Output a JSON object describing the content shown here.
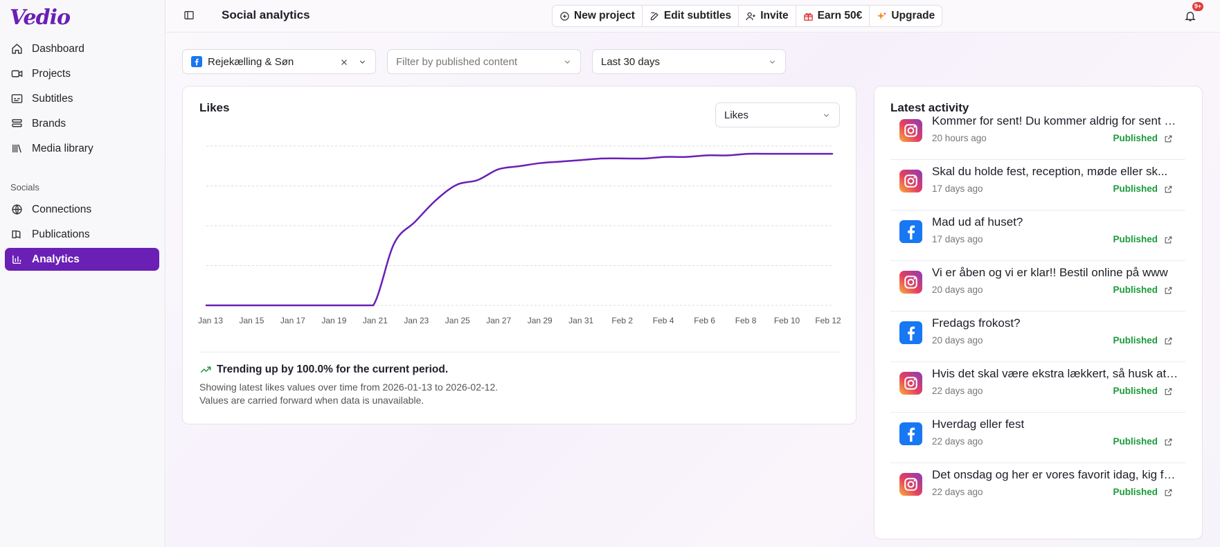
{
  "app": {
    "logo": "Vedio"
  },
  "sidebar": {
    "items": [
      {
        "label": "Dashboard",
        "icon": "home-icon"
      },
      {
        "label": "Projects",
        "icon": "video-icon"
      },
      {
        "label": "Subtitles",
        "icon": "subtitles-icon"
      },
      {
        "label": "Brands",
        "icon": "layers-icon"
      },
      {
        "label": "Media library",
        "icon": "library-icon"
      }
    ],
    "section_label": "Socials",
    "social_items": [
      {
        "label": "Connections",
        "icon": "globe-icon"
      },
      {
        "label": "Publications",
        "icon": "book-icon"
      },
      {
        "label": "Analytics",
        "icon": "bar-chart-icon",
        "active": true
      }
    ]
  },
  "header": {
    "title": "Social analytics",
    "actions": [
      "New project",
      "Edit subtitles",
      "Invite",
      "Earn 50€",
      "Upgrade"
    ],
    "notification_badge": "9+"
  },
  "filters": {
    "brand": "Rejekælling & Søn",
    "content_placeholder": "Filter by published content",
    "period": "Last 30 days"
  },
  "chart_card": {
    "title": "Likes",
    "metric_select": "Likes",
    "trend_text": "Trending up by 100.0% for the current period.",
    "note_line1": "Showing latest likes values over time from 2026-01-13 to 2026-02-12.",
    "note_line2": "Values are carried forward when data is unavailable."
  },
  "chart_data": {
    "type": "line",
    "title": "Likes",
    "x_ticks": [
      "Jan 13",
      "Jan 15",
      "Jan 17",
      "Jan 19",
      "Jan 21",
      "Jan 23",
      "Jan 25",
      "Jan 27",
      "Jan 29",
      "Jan 31",
      "Feb 2",
      "Feb 4",
      "Feb 6",
      "Feb 8",
      "Feb 10",
      "Feb 12"
    ],
    "x": [
      0,
      1,
      2,
      3,
      4,
      5,
      6,
      7,
      8,
      9,
      10,
      11,
      12,
      13,
      14,
      15,
      16,
      17,
      18,
      19,
      20,
      21,
      22,
      23,
      24,
      25,
      26,
      27,
      28,
      29,
      30
    ],
    "values": [
      0,
      0,
      0,
      0,
      0,
      0,
      0,
      0,
      0,
      0.4,
      0.54,
      0.68,
      0.78,
      0.81,
      0.88,
      0.9,
      0.92,
      0.93,
      0.94,
      0.95,
      0.95,
      0.95,
      0.96,
      0.96,
      0.97,
      0.97,
      0.98,
      0.98,
      0.98,
      0.98,
      0.98
    ],
    "ylim": [
      0,
      1.03
    ],
    "color": "#6a1fb5",
    "grid": true
  },
  "activity": {
    "title": "Latest activity",
    "items": [
      {
        "platform": "instagram",
        "title": "Kommer for sent! Du kommer aldrig for sent til en god frokost",
        "time": "20 hours ago",
        "status": "Published"
      },
      {
        "platform": "instagram",
        "title": "Skal du holde fest, reception, møde eller sk...",
        "time": "17 days ago",
        "status": "Published"
      },
      {
        "platform": "facebook",
        "title": "Mad ud af huset?",
        "time": "17 days ago",
        "status": "Published"
      },
      {
        "platform": "instagram",
        "title": "Vi er åben og vi er klar!! Bestil online på www",
        "time": "20 days ago",
        "status": "Published"
      },
      {
        "platform": "facebook",
        "title": "Fredags frokost?",
        "time": "20 days ago",
        "status": "Published"
      },
      {
        "platform": "instagram",
        "title": "Hvis det skal være ekstra lækkert, så husk at bestille",
        "time": "22 days ago",
        "status": "Published"
      },
      {
        "platform": "facebook",
        "title": "Hverdag eller fest",
        "time": "22 days ago",
        "status": "Published"
      },
      {
        "platform": "instagram",
        "title": "Det onsdag og her er vores favorit idag, kig forbi",
        "time": "22 days ago",
        "status": "Published"
      }
    ]
  }
}
